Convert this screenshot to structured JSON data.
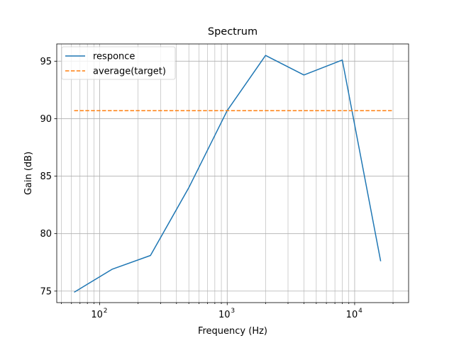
{
  "chart_data": {
    "type": "line",
    "title": "Spectrum",
    "xlabel": "Frequency (Hz)",
    "ylabel": "Gain (dB)",
    "xscale": "log",
    "xlim": [
      46,
      26500
    ],
    "ylim": [
      74,
      96.5
    ],
    "x_ticks": [
      {
        "value": 100,
        "label": "10",
        "exp": "2"
      },
      {
        "value": 1000,
        "label": "10",
        "exp": "3"
      },
      {
        "value": 10000,
        "label": "10",
        "exp": "4"
      }
    ],
    "y_ticks": [
      75,
      80,
      85,
      90,
      95
    ],
    "grid": "both (major and minor)",
    "legend_position": "upper-left",
    "series": [
      {
        "name": "responce",
        "color": "#1f77b4",
        "style": "solid",
        "x": [
          63,
          125,
          250,
          500,
          1000,
          2000,
          4000,
          8000,
          16000
        ],
        "y": [
          74.9,
          76.9,
          78.1,
          84.0,
          90.7,
          95.5,
          93.8,
          95.1,
          77.6
        ]
      },
      {
        "name": "average(target)",
        "color": "#ff7f0e",
        "style": "dashed",
        "x": [
          63,
          20000
        ],
        "y": [
          90.7,
          90.7
        ]
      }
    ]
  }
}
